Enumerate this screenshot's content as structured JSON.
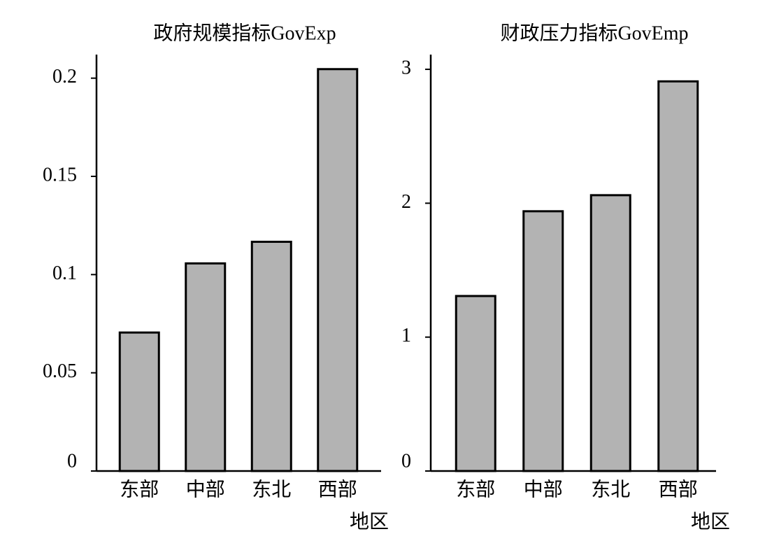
{
  "chart_data": [
    {
      "type": "bar",
      "title": "政府规模指标GovExp",
      "x_label": "地区",
      "categories": [
        "东部",
        "中部",
        "东北",
        "西部"
      ],
      "values": [
        0.0705,
        0.1057,
        0.1167,
        0.2046
      ],
      "color": "#b3b3b3",
      "ylim": [
        0,
        0.212
      ],
      "yticks": [
        0,
        0.05,
        0.1,
        0.15,
        0.2
      ]
    },
    {
      "type": "bar",
      "title": "财政压力指标GovEmp",
      "x_label": "地区",
      "categories": [
        "东部",
        "中部",
        "东北",
        "西部"
      ],
      "values": [
        1.307,
        1.94,
        2.06,
        2.91
      ],
      "color": "#b3b3b3",
      "ylim": [
        0,
        3.11
      ],
      "yticks": [
        0,
        1,
        2,
        3
      ]
    }
  ]
}
